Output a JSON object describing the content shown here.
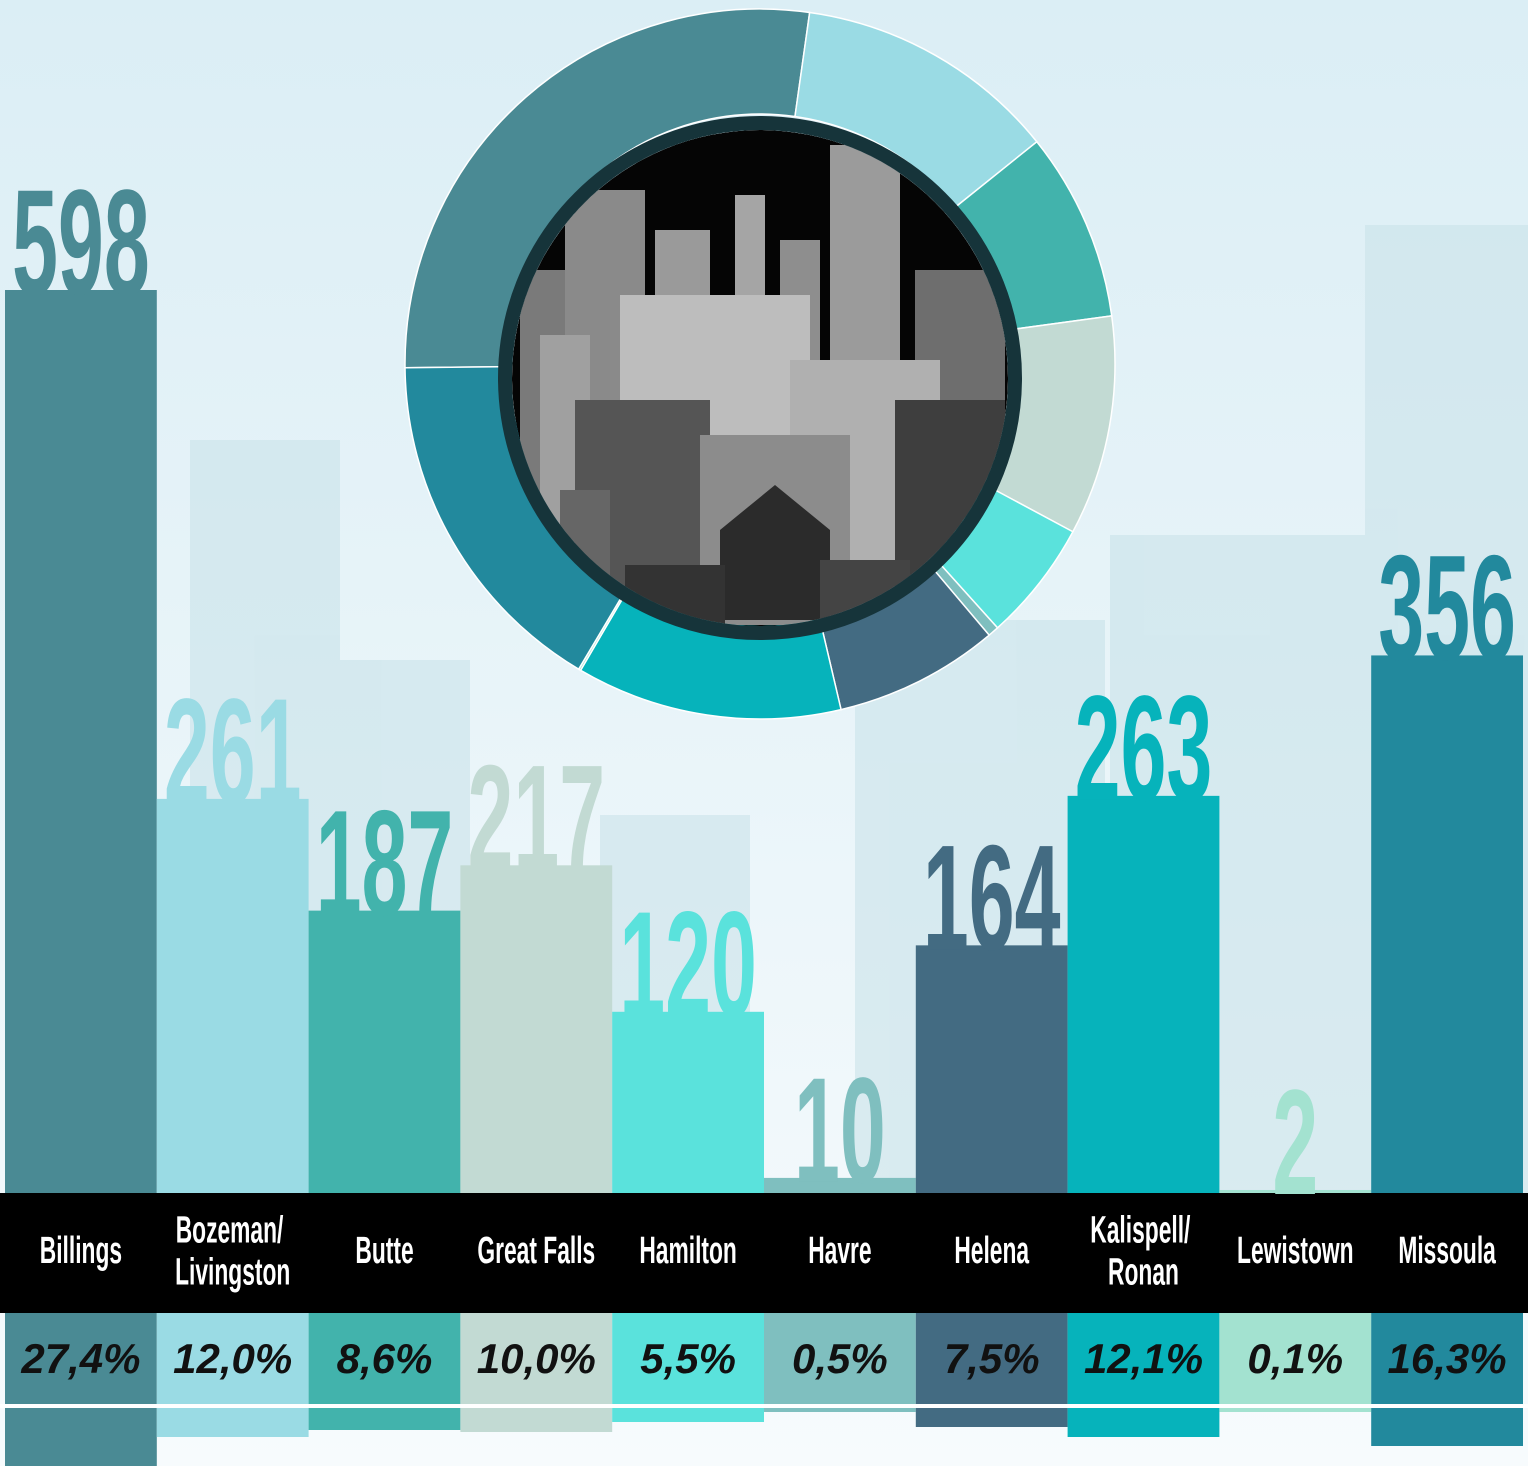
{
  "chart_data": [
    {
      "type": "bar",
      "categories": [
        "Billings",
        "Bozeman/ Livingston",
        "Butte",
        "Great Falls",
        "Hamilton",
        "Havre",
        "Helena",
        "Kalispell/ Ronan",
        "Lewistown",
        "Missoula"
      ],
      "values": [
        598,
        261,
        187,
        217,
        120,
        10,
        164,
        263,
        2,
        356
      ],
      "colors": [
        "#4a8a94",
        "#9adbe4",
        "#42b3ac",
        "#c2dad3",
        "#5ae2dc",
        "#7fbfbf",
        "#436b82",
        "#06b3bb",
        "#a3e2d0",
        "#22899d"
      ]
    },
    {
      "type": "pie",
      "values": [
        27.4,
        12.0,
        8.6,
        10.0,
        5.5,
        0.5,
        7.5,
        12.1,
        0.1,
        16.3
      ],
      "value_labels": [
        "27,4%",
        "12,0%",
        "8,6%",
        "10,0%",
        "5,5%",
        "0,5%",
        "7,5%",
        "12,1%",
        "0,1%",
        "16,3%"
      ],
      "colors": [
        "#4a8a94",
        "#9adbe4",
        "#42b3ac",
        "#c2dad3",
        "#5ae2dc",
        "#7fbfbf",
        "#436b82",
        "#06b3bb",
        "#a3e2d0",
        "#22899d"
      ]
    }
  ]
}
